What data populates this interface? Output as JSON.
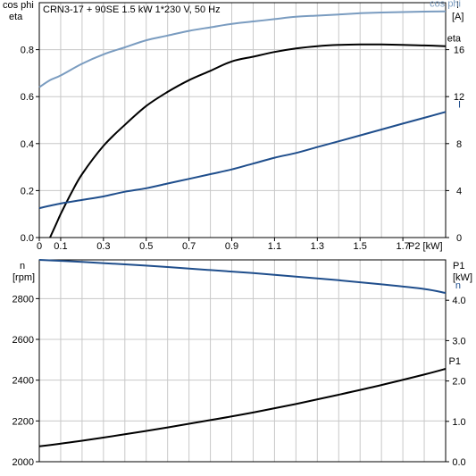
{
  "chart_data": [
    {
      "type": "line",
      "header": "CRN3-17 + 90SE   1.5 kW   1*230 V, 50 Hz",
      "x_ticks": [
        "0",
        "0.1",
        "0.3",
        "0.5",
        "0.7",
        "0.9",
        "1.1",
        "1.3",
        "1.5",
        "1.7"
      ],
      "x_tick_values": [
        0,
        0.1,
        0.3,
        0.5,
        0.7,
        0.9,
        1.1,
        1.3,
        1.5,
        1.7
      ],
      "x_unit_label": "P2 [kW]",
      "xlim": [
        0,
        1.9
      ],
      "left_axis": {
        "labels": [
          "cos phi",
          "eta"
        ],
        "ylim": [
          0,
          1.0
        ],
        "ticks": [
          "0.0",
          "0.2",
          "0.4",
          "0.6",
          "0.8"
        ],
        "tick_values": [
          0,
          0.2,
          0.4,
          0.6,
          0.8
        ]
      },
      "right_axis": {
        "labels": [
          "I",
          "[A]"
        ],
        "ylim": [
          0,
          20
        ],
        "ticks": [
          "0",
          "4",
          "8",
          "12",
          "16"
        ],
        "tick_values": [
          0,
          4,
          8,
          12,
          16
        ]
      },
      "grid": true,
      "series": [
        {
          "name": "cos phi",
          "axis": "left",
          "color": "#7a9cc0",
          "x": [
            0,
            0.05,
            0.1,
            0.2,
            0.3,
            0.4,
            0.5,
            0.6,
            0.7,
            0.8,
            0.9,
            1.0,
            1.1,
            1.2,
            1.3,
            1.4,
            1.5,
            1.6,
            1.7,
            1.8,
            1.9
          ],
          "y": [
            0.64,
            0.67,
            0.69,
            0.74,
            0.78,
            0.81,
            0.84,
            0.86,
            0.88,
            0.895,
            0.91,
            0.92,
            0.93,
            0.94,
            0.945,
            0.95,
            0.955,
            0.958,
            0.96,
            0.962,
            0.963
          ]
        },
        {
          "name": "eta",
          "axis": "left",
          "color": "#000000",
          "x": [
            0.05,
            0.08,
            0.1,
            0.15,
            0.2,
            0.3,
            0.4,
            0.5,
            0.6,
            0.7,
            0.8,
            0.9,
            1.0,
            1.1,
            1.2,
            1.3,
            1.4,
            1.5,
            1.6,
            1.7,
            1.8,
            1.9
          ],
          "y": [
            0.0,
            0.06,
            0.1,
            0.19,
            0.27,
            0.39,
            0.48,
            0.56,
            0.62,
            0.67,
            0.71,
            0.75,
            0.77,
            0.79,
            0.805,
            0.815,
            0.82,
            0.822,
            0.822,
            0.82,
            0.818,
            0.815
          ]
        },
        {
          "name": "I",
          "axis": "right",
          "color": "#1f4e8c",
          "x": [
            0,
            0.1,
            0.2,
            0.3,
            0.4,
            0.5,
            0.6,
            0.7,
            0.8,
            0.9,
            1.0,
            1.1,
            1.2,
            1.3,
            1.4,
            1.5,
            1.6,
            1.7,
            1.8,
            1.9
          ],
          "y": [
            2.5,
            2.9,
            3.2,
            3.5,
            3.9,
            4.2,
            4.6,
            5.0,
            5.4,
            5.8,
            6.3,
            6.8,
            7.2,
            7.7,
            8.2,
            8.7,
            9.2,
            9.7,
            10.2,
            10.7
          ]
        }
      ]
    },
    {
      "type": "line",
      "left_axis": {
        "labels": [
          "n",
          "[rpm]"
        ],
        "ylim": [
          2000,
          2990
        ],
        "ticks": [
          "2000",
          "2200",
          "2400",
          "2600",
          "2800"
        ],
        "tick_values": [
          2000,
          2200,
          2400,
          2600,
          2800
        ]
      },
      "right_axis": {
        "labels": [
          "P1",
          "[kW]"
        ],
        "ylim": [
          0,
          5.0
        ],
        "ticks": [
          "0.0",
          "1.0",
          "2.0",
          "3.0",
          "4.0"
        ],
        "tick_values": [
          0,
          1,
          2,
          3,
          4
        ]
      },
      "xlim": [
        0,
        1.9
      ],
      "grid": true,
      "series": [
        {
          "name": "n",
          "axis": "left",
          "color": "#1f4e8c",
          "x": [
            0,
            0.2,
            0.4,
            0.6,
            0.8,
            1.0,
            1.2,
            1.4,
            1.6,
            1.8,
            1.9
          ],
          "y": [
            2990,
            2980,
            2968,
            2955,
            2940,
            2925,
            2908,
            2890,
            2870,
            2847,
            2828
          ]
        },
        {
          "name": "P1",
          "axis": "right",
          "color": "#000000",
          "x": [
            0,
            0.2,
            0.4,
            0.6,
            0.8,
            1.0,
            1.2,
            1.4,
            1.6,
            1.8,
            1.9
          ],
          "y": [
            0.38,
            0.52,
            0.68,
            0.85,
            1.03,
            1.22,
            1.43,
            1.66,
            1.9,
            2.16,
            2.3
          ]
        }
      ]
    }
  ]
}
